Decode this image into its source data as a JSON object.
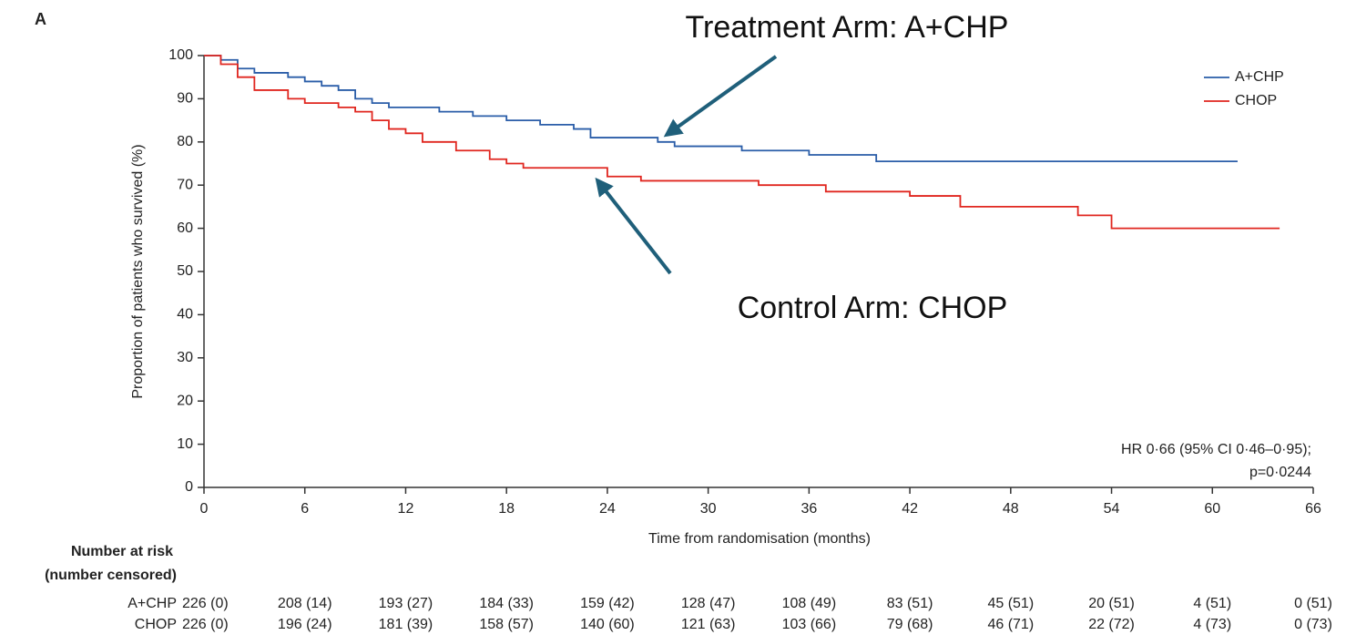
{
  "chart_data": {
    "type": "line",
    "step": true,
    "panel_label": "A",
    "xlabel": "Time from randomisation (months)",
    "ylabel": "Proportion of patients who survived (%)",
    "xlim": [
      0,
      66
    ],
    "ylim": [
      0,
      100
    ],
    "xticks": [
      0,
      6,
      12,
      18,
      24,
      30,
      36,
      42,
      48,
      54,
      60,
      66
    ],
    "yticks": [
      0,
      10,
      20,
      30,
      40,
      50,
      60,
      70,
      80,
      90,
      100
    ],
    "grid": false,
    "legend": "upper right",
    "series": [
      {
        "name": "A+CHP",
        "color": "#2a5da8",
        "x": [
          0,
          1,
          1,
          2,
          2,
          3,
          3,
          5,
          5,
          6,
          6,
          7,
          7,
          8,
          8,
          9,
          9,
          10,
          10,
          11,
          11,
          14,
          14,
          16,
          16,
          18,
          18,
          20,
          20,
          22,
          22,
          23,
          23,
          27,
          27,
          28,
          28,
          32,
          32,
          36,
          36,
          40,
          40,
          61.5
        ],
        "values": [
          100,
          100,
          99,
          99,
          97,
          97,
          96,
          96,
          95,
          95,
          94,
          94,
          93,
          93,
          92,
          92,
          90,
          90,
          89,
          89,
          88,
          88,
          87,
          87,
          86,
          86,
          85,
          85,
          84,
          84,
          83,
          83,
          81,
          81,
          80,
          80,
          79,
          79,
          78,
          78,
          77,
          77,
          75.5,
          75.5
        ]
      },
      {
        "name": "CHOP",
        "color": "#e0261f",
        "x": [
          0,
          1,
          1,
          2,
          2,
          3,
          3,
          5,
          5,
          6,
          6,
          8,
          8,
          9,
          9,
          10,
          10,
          11,
          11,
          12,
          12,
          13,
          13,
          15,
          15,
          17,
          17,
          18,
          18,
          19,
          19,
          24,
          24,
          26,
          26,
          33,
          33,
          37,
          37,
          42,
          42,
          45,
          45,
          52,
          52,
          54,
          54,
          64
        ],
        "values": [
          100,
          100,
          98,
          98,
          95,
          95,
          92,
          92,
          90,
          90,
          89,
          89,
          88,
          88,
          87,
          87,
          85,
          85,
          83,
          83,
          82,
          82,
          80,
          80,
          78,
          78,
          76,
          76,
          75,
          75,
          74,
          74,
          72,
          72,
          71,
          71,
          70,
          70,
          68.5,
          68.5,
          67.5,
          67.5,
          65,
          65,
          63,
          63,
          60,
          60
        ]
      }
    ],
    "annotations": [
      "Treatment Arm: A+CHP",
      "Control Arm: CHOP",
      "HR 0·66 (95% CI 0·46–0·95);",
      "p=0·0244"
    ],
    "risk_table": {
      "title": "Number at risk",
      "subtitle": "(number censored)",
      "rows": [
        [
          "226 (0)",
          "208 (14)",
          "193 (27)",
          "184 (33)",
          "159 (42)",
          "128 (47)",
          "108 (49)",
          "83 (51)",
          "45 (51)",
          "20 (51)",
          "4 (51)",
          "0 (51)"
        ],
        [
          "226 (0)",
          "196 (24)",
          "181 (39)",
          "158 (57)",
          "140 (60)",
          "121 (63)",
          "103 (66)",
          "79 (68)",
          "46 (71)",
          "22 (72)",
          "4 (73)",
          "0 (73)"
        ]
      ]
    }
  }
}
